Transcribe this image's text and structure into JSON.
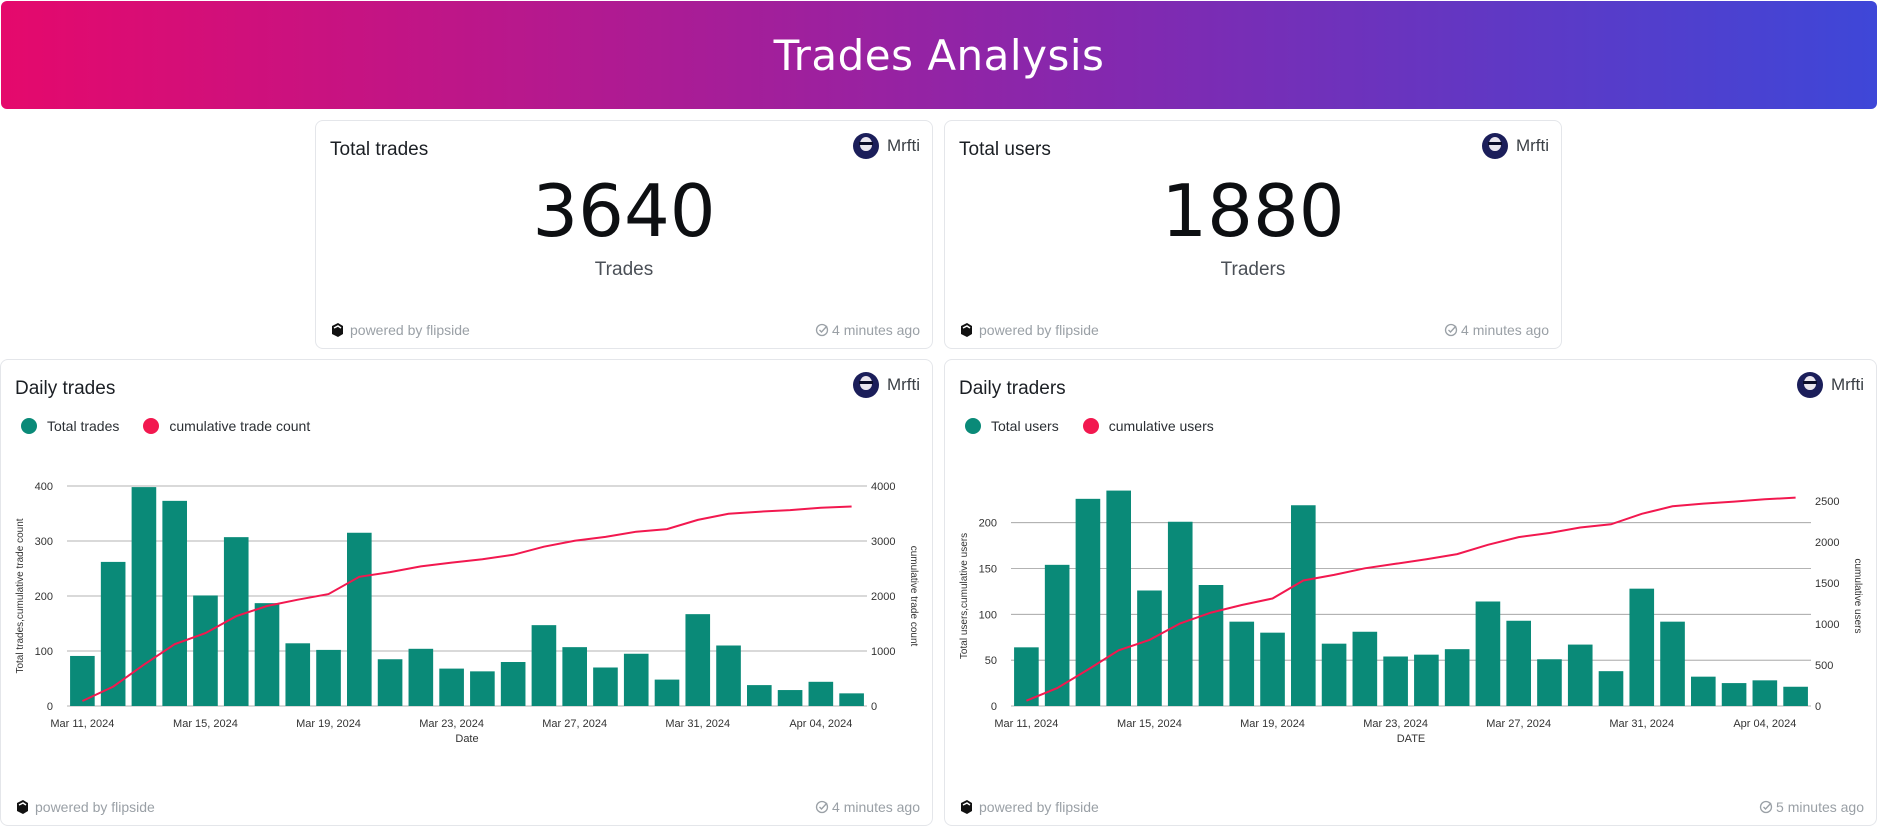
{
  "page": {
    "title": "Trades Analysis"
  },
  "colors": {
    "bar": "#0a8a78",
    "line": "#f2184f",
    "grid": "#9a9a9a"
  },
  "cards": {
    "total_trades": {
      "title": "Total trades",
      "author": "Mrfti",
      "value": "3640",
      "unit": "Trades",
      "powered": "powered by flipside",
      "updated": "4 minutes ago"
    },
    "total_users": {
      "title": "Total users",
      "author": "Mrfti",
      "value": "1880",
      "unit": "Traders",
      "powered": "powered by flipside",
      "updated": "4 minutes ago"
    },
    "daily_trades": {
      "title": "Daily trades",
      "author": "Mrfti",
      "powered": "powered by flipside",
      "updated": "4 minutes ago"
    },
    "daily_traders": {
      "title": "Daily traders",
      "author": "Mrfti",
      "powered": "powered by flipside",
      "updated": "5 minutes ago"
    }
  },
  "chart_data": [
    {
      "type": "bar",
      "id": "daily_trades",
      "title": "Daily trades",
      "legend": [
        "Total trades",
        "cumulative trade count"
      ],
      "xlabel": "Date",
      "ylabel": "Total trades,cumulative trade count",
      "y2label": "cumulative trade count",
      "ylim": [
        0,
        400
      ],
      "y2lim": [
        0,
        4000
      ],
      "yticks": [
        0,
        100,
        200,
        300,
        400
      ],
      "y2ticks": [
        0,
        1000,
        2000,
        3000,
        4000
      ],
      "xtick_labels": [
        "Mar 11, 2024",
        "Mar 15, 2024",
        "Mar 19, 2024",
        "Mar 23, 2024",
        "Mar 27, 2024",
        "Mar 31, 2024",
        "Apr 04, 2024"
      ],
      "xtick_index": [
        0,
        4,
        8,
        12,
        16,
        20,
        24
      ],
      "series": [
        {
          "name": "Total trades",
          "kind": "bar",
          "axis": "left",
          "values": [
            91,
            262,
            398,
            373,
            201,
            307,
            187,
            114,
            102,
            315,
            85,
            104,
            68,
            63,
            80,
            147,
            107,
            70,
            95,
            48,
            167,
            110,
            38,
            29,
            44,
            23
          ]
        },
        {
          "name": "cumulative trade count",
          "kind": "line",
          "axis": "right",
          "values": [
            91,
            353,
            751,
            1124,
            1325,
            1632,
            1819,
            1933,
            2035,
            2350,
            2435,
            2539,
            2607,
            2670,
            2750,
            2897,
            3004,
            3074,
            3169,
            3217,
            3384,
            3494,
            3532,
            3561,
            3605,
            3628
          ]
        }
      ]
    },
    {
      "type": "bar",
      "id": "daily_traders",
      "title": "Daily traders",
      "legend": [
        "Total users",
        "cumulative users"
      ],
      "xlabel": "DATE",
      "ylabel": "Total users,cumulative users",
      "y2label": "cumulative users",
      "ylim": [
        0,
        240
      ],
      "y2lim": [
        0,
        2680
      ],
      "yticks": [
        0,
        50,
        100,
        150,
        200
      ],
      "y2ticks": [
        0,
        500,
        1000,
        1500,
        2000,
        2500
      ],
      "xtick_labels": [
        "Mar 11, 2024",
        "Mar 15, 2024",
        "Mar 19, 2024",
        "Mar 23, 2024",
        "Mar 27, 2024",
        "Mar 31, 2024",
        "Apr 04, 2024"
      ],
      "xtick_index": [
        0,
        4,
        8,
        12,
        16,
        20,
        24
      ],
      "series": [
        {
          "name": "Total users",
          "kind": "bar",
          "axis": "left",
          "values": [
            64,
            154,
            226,
            235,
            126,
            201,
            132,
            92,
            80,
            219,
            68,
            81,
            54,
            56,
            62,
            114,
            93,
            51,
            67,
            38,
            128,
            92,
            32,
            25,
            28,
            21
          ]
        },
        {
          "name": "cumulative users",
          "kind": "line",
          "axis": "right",
          "values": [
            64,
            218,
            444,
            679,
            805,
            1006,
            1138,
            1230,
            1310,
            1529,
            1597,
            1678,
            1732,
            1788,
            1850,
            1964,
            2057,
            2108,
            2175,
            2213,
            2341,
            2433,
            2465,
            2490,
            2518,
            2539
          ]
        }
      ]
    }
  ]
}
